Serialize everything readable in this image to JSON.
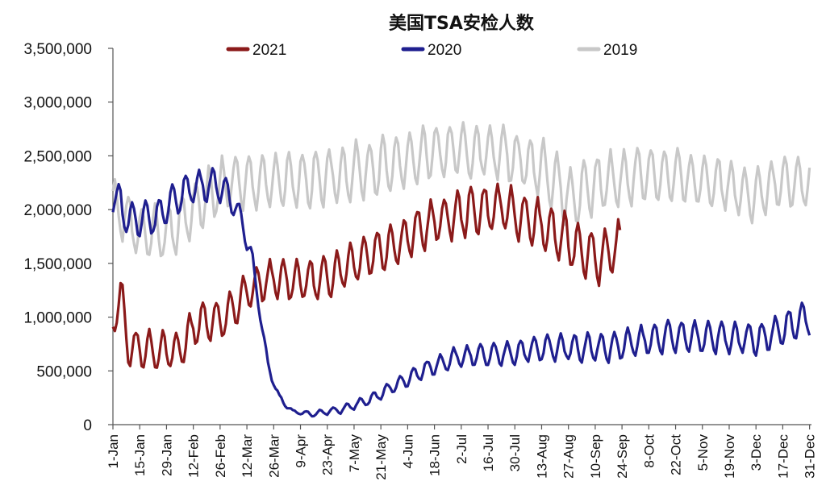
{
  "chart_data": {
    "type": "line",
    "title": "美国TSA安检人数",
    "xlabel": "",
    "ylabel": "",
    "ylim": [
      0,
      3500000
    ],
    "y_ticks": [
      "3,500,000",
      "3,000,000",
      "2,500,000",
      "2,000,000",
      "1,500,000",
      "1,000,000",
      "500,000",
      "0"
    ],
    "y_tick_values": [
      3500000,
      3000000,
      2500000,
      2000000,
      1500000,
      1000000,
      500000,
      0
    ],
    "x_axis": {
      "unit": "day of year",
      "range": [
        1,
        366
      ]
    },
    "x_ticks": [
      {
        "label": "1-Jan",
        "day": 1
      },
      {
        "label": "15-Jan",
        "day": 15
      },
      {
        "label": "29-Jan",
        "day": 29
      },
      {
        "label": "12-Feb",
        "day": 43
      },
      {
        "label": "26-Feb",
        "day": 57
      },
      {
        "label": "12-Mar",
        "day": 71
      },
      {
        "label": "26-Mar",
        "day": 85
      },
      {
        "label": "9-Apr",
        "day": 99
      },
      {
        "label": "23-Apr",
        "day": 113
      },
      {
        "label": "7-May",
        "day": 127
      },
      {
        "label": "21-May",
        "day": 141
      },
      {
        "label": "4-Jun",
        "day": 155
      },
      {
        "label": "18-Jun",
        "day": 169
      },
      {
        "label": "2-Jul",
        "day": 183
      },
      {
        "label": "16-Jul",
        "day": 197
      },
      {
        "label": "30-Jul",
        "day": 211
      },
      {
        "label": "13-Aug",
        "day": 225
      },
      {
        "label": "27-Aug",
        "day": 239
      },
      {
        "label": "10-Sep",
        "day": 253
      },
      {
        "label": "24-Sep",
        "day": 267
      },
      {
        "label": "8-Oct",
        "day": 281
      },
      {
        "label": "22-Oct",
        "day": 295
      },
      {
        "label": "5-Nov",
        "day": 309
      },
      {
        "label": "19-Nov",
        "day": 323
      },
      {
        "label": "3-Dec",
        "day": 337
      },
      {
        "label": "17-Dec",
        "day": 351
      },
      {
        "label": "31-Dec",
        "day": 365
      }
    ],
    "legend_position": "top",
    "grid": false,
    "weekly_variation": "values oscillate with a 7-day cycle around the trend",
    "series": [
      {
        "name": "2021",
        "color": "#8B1A1A",
        "trend": [
          [
            1,
            920000
          ],
          [
            5,
            1250000
          ],
          [
            9,
            720000
          ],
          [
            20,
            700000
          ],
          [
            35,
            680000
          ],
          [
            45,
            950000
          ],
          [
            60,
            1000000
          ],
          [
            72,
            1250000
          ],
          [
            82,
            1350000
          ],
          [
            110,
            1350000
          ],
          [
            130,
            1550000
          ],
          [
            150,
            1700000
          ],
          [
            170,
            1900000
          ],
          [
            190,
            2000000
          ],
          [
            205,
            2020000
          ],
          [
            225,
            1850000
          ],
          [
            240,
            1700000
          ],
          [
            255,
            1550000
          ],
          [
            266,
            1650000
          ]
        ],
        "weekly_amplitude": [
          [
            1,
            160000
          ],
          [
            60,
            170000
          ],
          [
            130,
            190000
          ],
          [
            266,
            230000
          ]
        ]
      },
      {
        "name": "2020",
        "color": "#1F1F8F",
        "trend": [
          [
            1,
            2150000
          ],
          [
            10,
            1900000
          ],
          [
            25,
            1950000
          ],
          [
            40,
            2200000
          ],
          [
            55,
            2250000
          ],
          [
            65,
            2050000
          ],
          [
            72,
            1700000
          ],
          [
            77,
            1150000
          ],
          [
            82,
            550000
          ],
          [
            88,
            250000
          ],
          [
            95,
            120000
          ],
          [
            105,
            100000
          ],
          [
            120,
            140000
          ],
          [
            135,
            230000
          ],
          [
            150,
            380000
          ],
          [
            165,
            520000
          ],
          [
            180,
            630000
          ],
          [
            200,
            650000
          ],
          [
            230,
            720000
          ],
          [
            260,
            720000
          ],
          [
            290,
            820000
          ],
          [
            320,
            820000
          ],
          [
            340,
            800000
          ],
          [
            358,
            950000
          ],
          [
            365,
            1000000
          ]
        ],
        "weekly_amplitude": [
          [
            1,
            180000
          ],
          [
            70,
            120000
          ],
          [
            80,
            50000
          ],
          [
            95,
            15000
          ],
          [
            130,
            40000
          ],
          [
            180,
            90000
          ],
          [
            260,
            130000
          ],
          [
            365,
            150000
          ]
        ]
      },
      {
        "name": "2019",
        "color": "#C8C8C8",
        "trend": [
          [
            1,
            2050000
          ],
          [
            15,
            1800000
          ],
          [
            30,
            1780000
          ],
          [
            45,
            2050000
          ],
          [
            60,
            2250000
          ],
          [
            80,
            2280000
          ],
          [
            110,
            2300000
          ],
          [
            140,
            2400000
          ],
          [
            170,
            2550000
          ],
          [
            200,
            2550000
          ],
          [
            225,
            2400000
          ],
          [
            240,
            2100000
          ],
          [
            255,
            2250000
          ],
          [
            280,
            2350000
          ],
          [
            300,
            2300000
          ],
          [
            320,
            2250000
          ],
          [
            335,
            2150000
          ],
          [
            350,
            2250000
          ],
          [
            365,
            2250000
          ]
        ],
        "weekly_amplitude": [
          [
            1,
            230000
          ],
          [
            120,
            250000
          ],
          [
            200,
            240000
          ],
          [
            240,
            260000
          ],
          [
            300,
            230000
          ],
          [
            365,
            240000
          ]
        ]
      }
    ]
  }
}
